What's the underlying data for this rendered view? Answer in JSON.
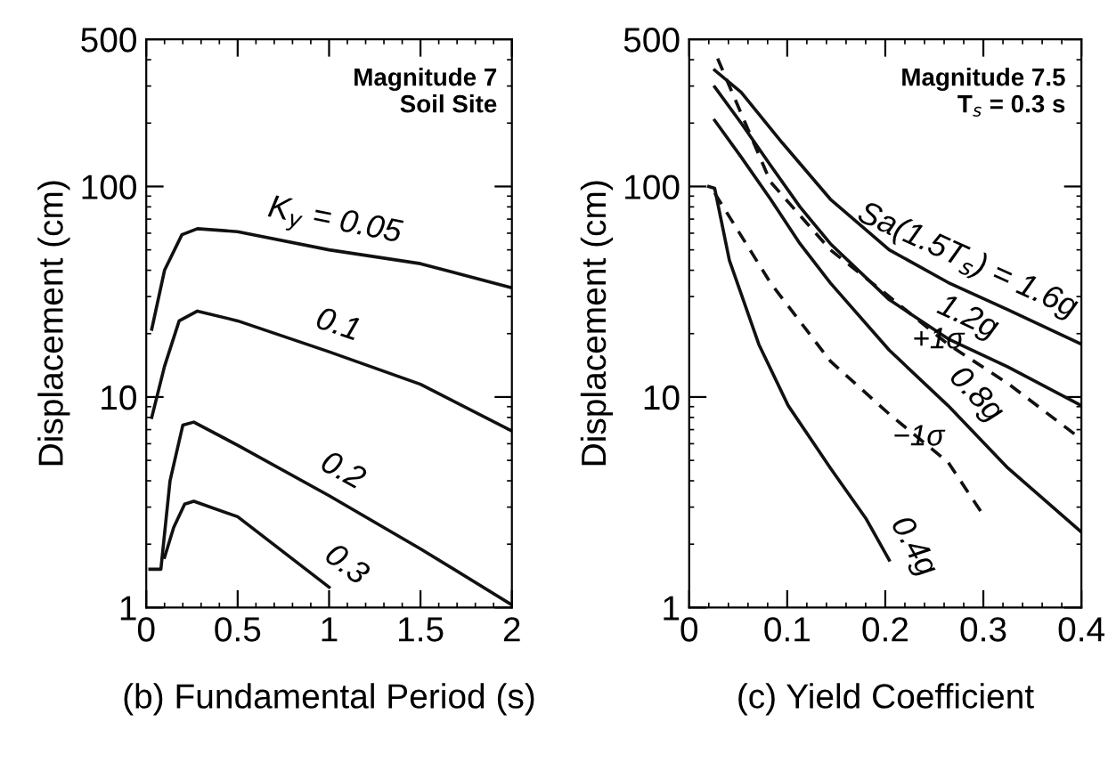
{
  "chart_data": [
    {
      "type": "line",
      "xlabel": "(b) Fundamental Period (s)",
      "ylabel": "Displacement (cm)",
      "log": "y",
      "xlim": [
        0,
        2
      ],
      "ylim": [
        1,
        500
      ],
      "xticks": [
        0,
        0.5,
        1,
        1.5,
        2
      ],
      "yticks": [
        1,
        10,
        100,
        500
      ],
      "grid": false,
      "marker": "none",
      "series": [
        {
          "name": "K$_{y}$ = 0.05",
          "color": "#111111",
          "line_style": "solid",
          "x": [
            0.03,
            0.1,
            0.195,
            0.28,
            0.5,
            1,
            1.5,
            2
          ],
          "values": [
            21,
            40,
            59,
            63,
            61,
            50,
            43,
            33
          ]
        },
        {
          "name": "0.1",
          "color": "#111111",
          "line_style": "solid",
          "x": [
            0.03,
            0.1,
            0.18,
            0.28,
            0.5,
            1,
            1.5,
            2
          ],
          "values": [
            8,
            14,
            23,
            25.6,
            23,
            16.4,
            11.5,
            6.9
          ]
        },
        {
          "name": "0.2",
          "color": "#111111",
          "line_style": "solid",
          "x": [
            0.02,
            0.08,
            0.13,
            0.2,
            0.26,
            0.5,
            1,
            1.5,
            2
          ],
          "values": [
            1.52,
            1.52,
            4,
            7.35,
            7.6,
            5.9,
            3.4,
            1.9,
            1.03
          ]
        },
        {
          "name": "0.3",
          "color": "#111111",
          "line_style": "solid",
          "x": [
            0.1,
            0.15,
            0.21,
            0.26,
            0.5,
            1
          ],
          "values": [
            1.73,
            2.4,
            3.1,
            3.2,
            2.7,
            1.25
          ]
        }
      ],
      "annotations": [
        "Magnitude 7\nSoil Site"
      ]
    },
    {
      "type": "line",
      "xlabel": "(c) Yield Coefficient",
      "ylabel": "Displacement (cm)",
      "log": "y",
      "xlim": [
        0,
        0.4
      ],
      "ylim": [
        1,
        500
      ],
      "xticks": [
        0,
        0.1,
        0.2,
        0.3,
        0.4
      ],
      "yticks": [
        1,
        10,
        100,
        500
      ],
      "grid": false,
      "marker": "none",
      "series": [
        {
          "name": "Sa(1.5T$_{s}$) = 1.6g",
          "color": "#111111",
          "line_style": "solid",
          "x": [
            0.026,
            0.053,
            0.095,
            0.144,
            0.204,
            0.264,
            0.325,
            0.4
          ],
          "values": [
            357,
            280,
            161,
            87,
            50,
            35,
            26,
            17.8
          ]
        },
        {
          "name": "1.2g",
          "color": "#111111",
          "line_style": "solid",
          "x": [
            0.026,
            0.053,
            0.083,
            0.113,
            0.144,
            0.204,
            0.264,
            0.325,
            0.4
          ],
          "values": [
            297,
            200,
            126,
            80,
            53.5,
            29,
            18.9,
            13.9,
            9.1
          ]
        },
        {
          "name": "0.8g",
          "color": "#111111",
          "line_style": "solid",
          "x": [
            0.026,
            0.053,
            0.083,
            0.113,
            0.144,
            0.204,
            0.264,
            0.325,
            0.4
          ],
          "values": [
            206,
            138,
            87,
            53.5,
            34.8,
            16.7,
            9.1,
            4.6,
            2.28
          ]
        },
        {
          "name": "0.4g",
          "color": "#111111",
          "line_style": "solid",
          "x": [
            0.02,
            0.026,
            0.041,
            0.071,
            0.101,
            0.144,
            0.18,
            0.204
          ],
          "values": [
            100,
            98,
            44.6,
            17.8,
            9.1,
            4.6,
            2.66,
            1.68
          ]
        },
        {
          "color": "#111111",
          "line_style": "dashed",
          "x": [
            0.029,
            0.083,
            0.144,
            0.204,
            0.264,
            0.325,
            0.4
          ],
          "values": [
            405,
            105,
            50,
            30,
            17.8,
            11.6,
            6.3
          ]
        },
        {
          "color": "#111111",
          "line_style": "dashed",
          "x": [
            0.026,
            0.083,
            0.144,
            0.204,
            0.264,
            0.3
          ],
          "values": [
            93,
            34.8,
            14.8,
            8.3,
            4.9,
            2.75
          ]
        }
      ],
      "annotations": [
        "Magnitude 7.5\nT$_{s}$ = 0.3 s",
        {
          "text": "+1σ",
          "x": 0.22,
          "y": 24
        },
        {
          "text": "−1σ",
          "x": 0.2,
          "y": 8.3
        }
      ]
    }
  ]
}
